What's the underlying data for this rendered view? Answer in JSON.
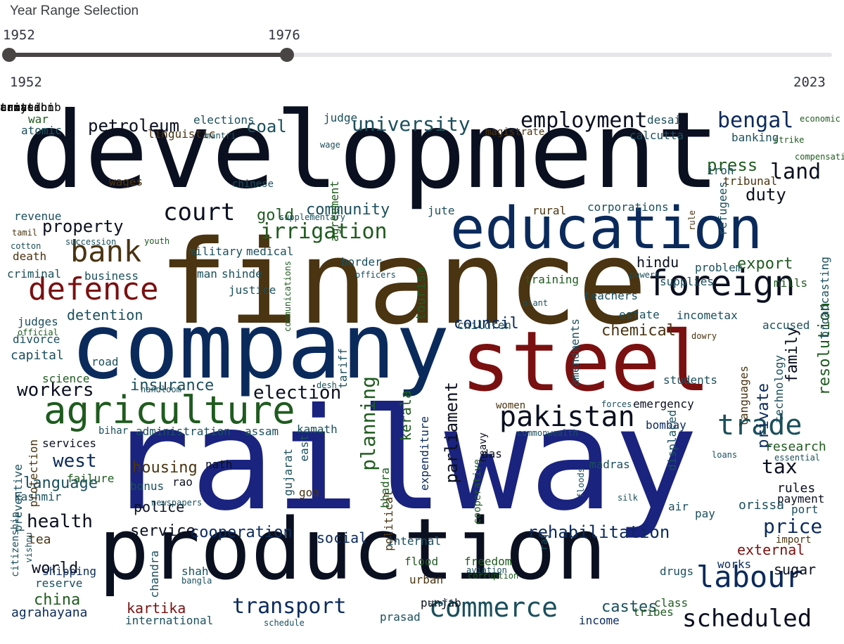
{
  "slider": {
    "label": "Year Range Selection",
    "value_start": "1952",
    "value_end": "1976",
    "min_label": "1952",
    "max_label": "2023",
    "selected_start_fraction": 0.0,
    "selected_end_fraction": 0.338
  },
  "colors": {
    "dark": "#0b1020",
    "navy": "#1a237e",
    "blue": "#0b2a5c",
    "brown": "#4a3411",
    "red": "#7a1010",
    "green": "#1f5b1f",
    "teal": "#1b4f5c"
  },
  "cloud": {
    "words": [
      {
        "text": "railway",
        "color": "navy"
      },
      {
        "text": "development",
        "color": "dark"
      },
      {
        "text": "finance",
        "color": "brown"
      },
      {
        "text": "company",
        "color": "blue"
      },
      {
        "text": "production",
        "color": "dark"
      },
      {
        "text": "steel",
        "color": "red"
      },
      {
        "text": "education",
        "color": "blue"
      },
      {
        "text": "agriculture",
        "color": "green"
      },
      {
        "text": "foreign",
        "color": "dark"
      },
      {
        "text": "defence",
        "color": "red"
      },
      {
        "text": "bank",
        "color": "brown"
      },
      {
        "text": "labour",
        "color": "blue"
      },
      {
        "text": "trade",
        "color": "teal"
      },
      {
        "text": "pakistan",
        "color": "dark"
      },
      {
        "text": "commerce",
        "color": "teal"
      },
      {
        "text": "scheduled",
        "color": "dark"
      },
      {
        "text": "court",
        "color": "dark"
      },
      {
        "text": "irrigation",
        "color": "green"
      },
      {
        "text": "employment",
        "color": "dark"
      },
      {
        "text": "university",
        "color": "teal"
      },
      {
        "text": "bengal",
        "color": "blue"
      },
      {
        "text": "land",
        "color": "dark"
      },
      {
        "text": "property",
        "color": "dark"
      },
      {
        "text": "transport",
        "color": "blue"
      },
      {
        "text": "planning",
        "color": "green"
      },
      {
        "text": "parliament",
        "color": "dark"
      },
      {
        "text": "health",
        "color": "dark"
      },
      {
        "text": "price",
        "color": "blue"
      },
      {
        "text": "rehabilitation",
        "color": "blue"
      },
      {
        "text": "workers",
        "color": "dark"
      },
      {
        "text": "election",
        "color": "dark"
      },
      {
        "text": "insurance",
        "color": "teal"
      },
      {
        "text": "housing",
        "color": "brown"
      },
      {
        "text": "coal",
        "color": "teal"
      },
      {
        "text": "petroleum",
        "color": "dark"
      },
      {
        "text": "duty",
        "color": "dark"
      },
      {
        "text": "press",
        "color": "green"
      },
      {
        "text": "tax",
        "color": "dark"
      },
      {
        "text": "council",
        "color": "blue"
      },
      {
        "text": "chemical",
        "color": "brown"
      },
      {
        "text": "resolution",
        "color": "green"
      },
      {
        "text": "family",
        "color": "dark"
      },
      {
        "text": "export",
        "color": "green"
      },
      {
        "text": "hindu",
        "color": "dark"
      },
      {
        "text": "cooperation",
        "color": "blue"
      },
      {
        "text": "service",
        "color": "dark"
      },
      {
        "text": "world",
        "color": "dark"
      },
      {
        "text": "china",
        "color": "green"
      },
      {
        "text": "language",
        "color": "teal"
      },
      {
        "text": "west",
        "color": "blue"
      },
      {
        "text": "police",
        "color": "dark"
      },
      {
        "text": "social",
        "color": "blue"
      },
      {
        "text": "kerala",
        "color": "green"
      },
      {
        "text": "external",
        "color": "red"
      },
      {
        "text": "sugar",
        "color": "dark"
      },
      {
        "text": "castes",
        "color": "teal"
      },
      {
        "text": "kartika",
        "color": "red"
      },
      {
        "text": "community",
        "color": "teal"
      },
      {
        "text": "gold",
        "color": "green"
      },
      {
        "text": "detention",
        "color": "teal"
      },
      {
        "text": "business",
        "color": "teal"
      },
      {
        "text": "tea",
        "color": "brown"
      },
      {
        "text": "shipping",
        "color": "blue"
      },
      {
        "text": "agrahayana",
        "color": "blue"
      },
      {
        "text": "international",
        "color": "teal"
      },
      {
        "text": "private",
        "color": "blue"
      },
      {
        "text": "works",
        "color": "blue"
      },
      {
        "text": "tribes",
        "color": "green"
      },
      {
        "text": "class",
        "color": "green"
      },
      {
        "text": "income",
        "color": "blue"
      },
      {
        "text": "punjab",
        "color": "dark"
      },
      {
        "text": "prasad",
        "color": "teal"
      },
      {
        "text": "urban",
        "color": "brown"
      },
      {
        "text": "flood",
        "color": "green"
      },
      {
        "text": "freedom",
        "color": "green"
      },
      {
        "text": "corruption",
        "color": "green"
      },
      {
        "text": "shah",
        "color": "teal"
      },
      {
        "text": "bangla",
        "color": "teal"
      },
      {
        "text": "drugs",
        "color": "teal"
      },
      {
        "text": "internal",
        "color": "teal"
      },
      {
        "text": "reserve",
        "color": "teal"
      },
      {
        "text": "estate",
        "color": "teal"
      },
      {
        "text": "incometax",
        "color": "teal"
      },
      {
        "text": "accused",
        "color": "teal"
      },
      {
        "text": "students",
        "color": "teal"
      },
      {
        "text": "languages",
        "color": "brown"
      },
      {
        "text": "technology",
        "color": "teal"
      },
      {
        "text": "broadcasting",
        "color": "teal"
      },
      {
        "text": "research",
        "color": "green"
      },
      {
        "text": "essential",
        "color": "teal"
      },
      {
        "text": "rules",
        "color": "dark"
      },
      {
        "text": "payment",
        "color": "dark"
      },
      {
        "text": "port",
        "color": "teal"
      },
      {
        "text": "orissa",
        "color": "teal"
      },
      {
        "text": "import",
        "color": "brown"
      },
      {
        "text": "pay",
        "color": "teal"
      },
      {
        "text": "air",
        "color": "teal"
      },
      {
        "text": "bombay",
        "color": "blue"
      },
      {
        "text": "emergency",
        "color": "dark"
      },
      {
        "text": "forces",
        "color": "teal"
      },
      {
        "text": "madras",
        "color": "teal"
      },
      {
        "text": "displaced",
        "color": "teal"
      },
      {
        "text": "loans",
        "color": "teal"
      },
      {
        "text": "floods",
        "color": "teal"
      },
      {
        "text": "silk",
        "color": "teal"
      },
      {
        "text": "women",
        "color": "brown"
      },
      {
        "text": "das",
        "color": "dark"
      },
      {
        "text": "heavy",
        "color": "dark"
      },
      {
        "text": "expenditure",
        "color": "blue"
      },
      {
        "text": "cooperative",
        "color": "green"
      },
      {
        "text": "commonwealth",
        "color": "teal"
      },
      {
        "text": "kamath",
        "color": "teal"
      },
      {
        "text": "assam",
        "color": "teal"
      },
      {
        "text": "administration",
        "color": "teal"
      },
      {
        "text": "bihar",
        "color": "teal"
      },
      {
        "text": "services",
        "color": "dark"
      },
      {
        "text": "failure",
        "color": "green"
      },
      {
        "text": "kashmir",
        "color": "teal"
      },
      {
        "text": "bonus",
        "color": "teal"
      },
      {
        "text": "rao",
        "color": "dark"
      },
      {
        "text": "nath",
        "color": "dark"
      },
      {
        "text": "goa",
        "color": "brown"
      },
      {
        "text": "gujarat",
        "color": "teal"
      },
      {
        "text": "east",
        "color": "teal"
      },
      {
        "text": "political",
        "color": "brown"
      },
      {
        "text": "bhadra",
        "color": "green"
      },
      {
        "text": "newspapers",
        "color": "teal"
      },
      {
        "text": "vishnu",
        "color": "teal"
      },
      {
        "text": "citizenship",
        "color": "teal"
      },
      {
        "text": "chandra",
        "color": "teal"
      },
      {
        "text": "raj",
        "color": "teal"
      },
      {
        "text": "staff",
        "color": "teal"
      },
      {
        "text": "schedule",
        "color": "teal"
      },
      {
        "text": "aviation",
        "color": "teal"
      },
      {
        "text": "preventive",
        "color": "teal"
      },
      {
        "text": "protection",
        "color": "brown"
      },
      {
        "text": "handloom",
        "color": "teal"
      },
      {
        "text": "desh",
        "color": "teal"
      },
      {
        "text": "science",
        "color": "green"
      },
      {
        "text": "capital",
        "color": "teal"
      },
      {
        "text": "divorce",
        "color": "teal"
      },
      {
        "text": "judges",
        "color": "teal"
      },
      {
        "text": "official",
        "color": "green"
      },
      {
        "text": "road",
        "color": "teal"
      },
      {
        "text": "tariff",
        "color": "teal"
      },
      {
        "text": "communications",
        "color": "green"
      },
      {
        "text": "tourism",
        "color": "green"
      },
      {
        "text": "children",
        "color": "teal"
      },
      {
        "text": "amendments",
        "color": "teal"
      },
      {
        "text": "dowry",
        "color": "brown"
      },
      {
        "text": "criminal",
        "color": "teal"
      },
      {
        "text": "death",
        "color": "brown"
      },
      {
        "text": "cotton",
        "color": "teal"
      },
      {
        "text": "tamil",
        "color": "brown"
      },
      {
        "text": "succession",
        "color": "teal"
      },
      {
        "text": "youth",
        "color": "green"
      },
      {
        "text": "military",
        "color": "teal"
      },
      {
        "text": "medical",
        "color": "teal"
      },
      {
        "text": "border",
        "color": "teal"
      },
      {
        "text": "man",
        "color": "teal"
      },
      {
        "text": "shinde",
        "color": "teal"
      },
      {
        "text": "justice",
        "color": "teal"
      },
      {
        "text": "officers",
        "color": "teal"
      },
      {
        "text": "training",
        "color": "green"
      },
      {
        "text": "plant",
        "color": "teal"
      },
      {
        "text": "teachers",
        "color": "teal"
      },
      {
        "text": "powers",
        "color": "teal"
      },
      {
        "text": "supplies",
        "color": "teal"
      },
      {
        "text": "problem",
        "color": "teal"
      },
      {
        "text": "mills",
        "color": "green"
      },
      {
        "text": "revenue",
        "color": "teal"
      },
      {
        "text": "supplementary",
        "color": "teal"
      },
      {
        "text": "wages",
        "color": "brown"
      },
      {
        "text": "chinese",
        "color": "teal"
      },
      {
        "text": "agreement",
        "color": "green"
      },
      {
        "text": "jute",
        "color": "teal"
      },
      {
        "text": "rural",
        "color": "brown"
      },
      {
        "text": "corporations",
        "color": "teal"
      },
      {
        "text": "refugees",
        "color": "teal"
      },
      {
        "text": "rule",
        "color": "brown"
      },
      {
        "text": "tribunal",
        "color": "brown"
      },
      {
        "text": "iron",
        "color": "teal"
      },
      {
        "text": "calcutta",
        "color": "teal"
      },
      {
        "text": "banking",
        "color": "teal"
      },
      {
        "text": "strike",
        "color": "green"
      },
      {
        "text": "compensation",
        "color": "green"
      },
      {
        "text": "economic",
        "color": "green"
      },
      {
        "text": "desai",
        "color": "teal"
      },
      {
        "text": "magistrate",
        "color": "brown"
      },
      {
        "text": "wage",
        "color": "teal"
      },
      {
        "text": "judge",
        "color": "teal"
      },
      {
        "text": "elections",
        "color": "teal"
      },
      {
        "text": "linguistic",
        "color": "brown"
      },
      {
        "text": "mantri",
        "color": "teal"
      },
      {
        "text": "war",
        "color": "green"
      },
      {
        "text": "atomic",
        "color": "teal"
      },
      {
        "text": "taxation",
        "color": "teal"
      },
      {
        "text": "annasahib",
        "color": "brown"
      },
      {
        "text": "united",
        "color": "teal"
      },
      {
        "text": "army",
        "color": "green"
      }
    ]
  }
}
